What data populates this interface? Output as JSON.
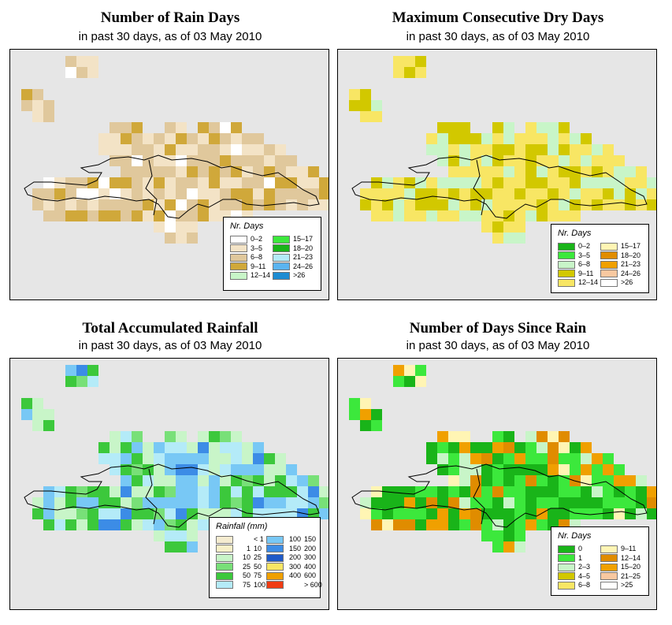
{
  "panels": [
    {
      "title": "Number of Rain Days",
      "subtitle": "in past 30 days, as of  03 May 2010",
      "legend_title": "Nr. Days",
      "legend": [
        {
          "label": "0–2",
          "color": "#ffffff"
        },
        {
          "label": "3–5",
          "color": "#f3e3c6"
        },
        {
          "label": "6–8",
          "color": "#e0c89c"
        },
        {
          "label": "9–11",
          "color": "#d0a83a"
        },
        {
          "label": "12–14",
          "color": "#c8f5c8"
        },
        {
          "label": "15–17",
          "color": "#3ce83c"
        },
        {
          "label": "18–20",
          "color": "#19b419"
        },
        {
          "label": "21–23",
          "color": "#b4ebf8"
        },
        {
          "label": "24–26",
          "color": "#5ab4f0"
        },
        {
          "label": ">26",
          "color": "#1e8cd2"
        }
      ]
    },
    {
      "title": "Maximum Consecutive Dry Days",
      "subtitle": "in past 30 days, as of  03 May 2010",
      "legend_title": "Nr. Days",
      "legend": [
        {
          "label": "0–2",
          "color": "#19b419"
        },
        {
          "label": "3–5",
          "color": "#3ce83c"
        },
        {
          "label": "6–8",
          "color": "#c8f5c8"
        },
        {
          "label": "9–11",
          "color": "#d2c800"
        },
        {
          "label": "12–14",
          "color": "#f8e664"
        },
        {
          "label": "15–17",
          "color": "#fff5b4"
        },
        {
          "label": "18–20",
          "color": "#e08c00"
        },
        {
          "label": "21–23",
          "color": "#f0a000"
        },
        {
          "label": "24–26",
          "color": "#f8c8a0"
        },
        {
          "label": ">26",
          "color": "#ffffff"
        }
      ]
    },
    {
      "title": "Total Accumulated Rainfall",
      "subtitle": "in past 30 days, as of  03 May 2010",
      "legend_title": "Rainfall (mm)",
      "legend": [
        {
          "lo": "",
          "hi": "< 1",
          "color": "#f5ecd0"
        },
        {
          "lo": "1",
          "hi": "10",
          "color": "#f8f0c8"
        },
        {
          "lo": "10",
          "hi": "25",
          "color": "#c8f5c8"
        },
        {
          "lo": "25",
          "hi": "50",
          "color": "#78e078"
        },
        {
          "lo": "50",
          "hi": "75",
          "color": "#3cc83c"
        },
        {
          "lo": "75",
          "hi": "100",
          "color": "#b4ebf8"
        },
        {
          "lo": "100",
          "hi": "150",
          "color": "#78c8f5"
        },
        {
          "lo": "150",
          "hi": "200",
          "color": "#3c8ce6"
        },
        {
          "lo": "200",
          "hi": "300",
          "color": "#1e5ac8"
        },
        {
          "lo": "300",
          "hi": "400",
          "color": "#f8e664"
        },
        {
          "lo": "400",
          "hi": "600",
          "color": "#f0a000"
        },
        {
          "lo": "",
          "hi": "> 600",
          "color": "#f03c14"
        }
      ]
    },
    {
      "title": "Number of Days Since Rain",
      "subtitle": "in past 30 days, as of  03 May 2010",
      "legend_title": "Nr. Days",
      "legend": [
        {
          "label": "0",
          "color": "#19b419"
        },
        {
          "label": "1",
          "color": "#3ce83c"
        },
        {
          "label": "2–3",
          "color": "#c8f5c8"
        },
        {
          "label": "4–5",
          "color": "#d2c800"
        },
        {
          "label": "6–8",
          "color": "#f8e664"
        },
        {
          "label": "9–11",
          "color": "#fff5b4"
        },
        {
          "label": "12–14",
          "color": "#e08c00"
        },
        {
          "label": "15–20",
          "color": "#f0a000"
        },
        {
          "label": "21–25",
          "color": "#f8c8a0"
        },
        {
          "label": ">25",
          "color": "#ffffff"
        }
      ]
    }
  ]
}
